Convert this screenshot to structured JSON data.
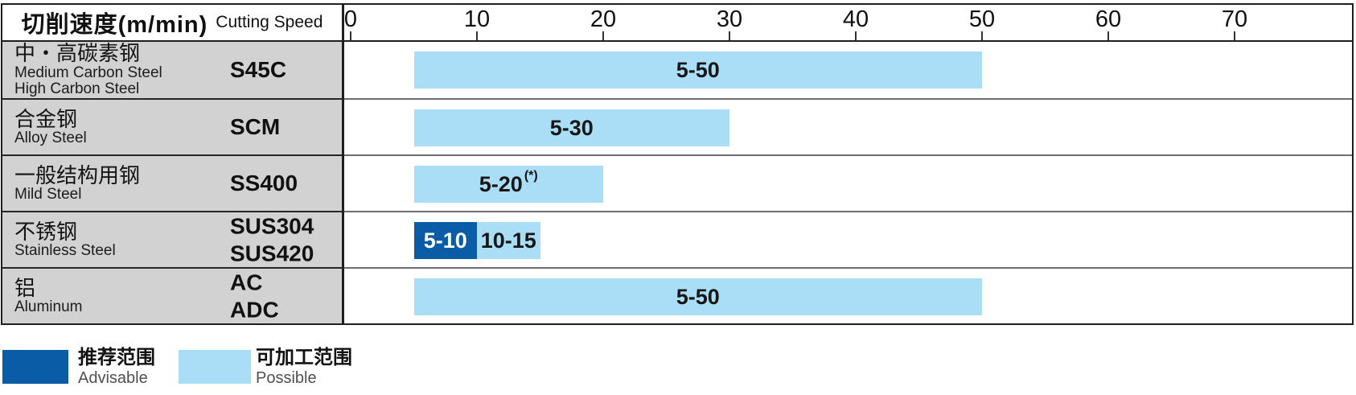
{
  "header": {
    "title_cjk": "切削速度(m/min)",
    "title_en": "Cutting Speed"
  },
  "axis": {
    "ticks": [
      0,
      10,
      20,
      30,
      40,
      50,
      60,
      70
    ],
    "unit": "m/min"
  },
  "rows": [
    {
      "name_cjk": "中・高碳素钢",
      "name_en": [
        "Medium Carbon Steel",
        "High Carbon Steel"
      ],
      "grades": [
        "S45C"
      ],
      "bars": [
        {
          "from": 5,
          "to": 50,
          "label": "5-50",
          "sup": "",
          "type": "possible"
        }
      ]
    },
    {
      "name_cjk": "合金钢",
      "name_en": [
        "Alloy Steel"
      ],
      "grades": [
        "SCM"
      ],
      "bars": [
        {
          "from": 5,
          "to": 30,
          "label": "5-30",
          "sup": "",
          "type": "possible"
        }
      ]
    },
    {
      "name_cjk": "一般结构用钢",
      "name_en": [
        "Mild Steel"
      ],
      "grades": [
        "SS400"
      ],
      "bars": [
        {
          "from": 5,
          "to": 20,
          "label": "5-20",
          "sup": "(*)",
          "type": "possible"
        }
      ]
    },
    {
      "name_cjk": "不锈钢",
      "name_en": [
        "Stainless Steel"
      ],
      "grades": [
        "SUS304",
        "SUS420"
      ],
      "bars": [
        {
          "from": 5,
          "to": 10,
          "label": "5-10",
          "sup": "",
          "type": "advisable"
        },
        {
          "from": 10,
          "to": 15,
          "label": "10-15",
          "sup": "",
          "type": "possible"
        }
      ]
    },
    {
      "name_cjk": "铝",
      "name_en": [
        "Aluminum"
      ],
      "grades": [
        "AC",
        "ADC"
      ],
      "bars": [
        {
          "from": 5,
          "to": 50,
          "label": "5-50",
          "sup": "",
          "type": "possible"
        }
      ]
    }
  ],
  "legend": [
    {
      "type": "advisable",
      "label_cjk": "推荐范围",
      "label_en": "Advisable"
    },
    {
      "type": "possible",
      "label_cjk": "可加工范围",
      "label_en": "Possible"
    }
  ],
  "colors": {
    "advisable": "#0b5ca6",
    "possible": "#aadef7",
    "advisable_text": "#ffffff",
    "possible_text": "#161616",
    "panel_gray": "#d2d2d2"
  },
  "chart_data": {
    "type": "bar",
    "orientation": "horizontal",
    "title": "切削速度(m/min) Cutting Speed",
    "xlabel": "Cutting Speed (m/min)",
    "xlim": [
      0,
      80
    ],
    "xticks": [
      0,
      10,
      20,
      30,
      40,
      50,
      60,
      70
    ],
    "grid": false,
    "legend_position": "bottom-left",
    "categories": [
      "中・高碳素钢 Medium/High Carbon Steel — S45C",
      "合金钢 Alloy Steel — SCM",
      "一般结构用钢 Mild Steel — SS400",
      "不锈钢 Stainless Steel — SUS304/SUS420",
      "铝 Aluminum — AC/ADC"
    ],
    "series": [
      {
        "name": "推荐范围 Advisable",
        "ranges": [
          null,
          null,
          null,
          [
            5,
            10
          ],
          null
        ]
      },
      {
        "name": "可加工范围 Possible",
        "ranges": [
          [
            5,
            50
          ],
          [
            5,
            30
          ],
          [
            5,
            20
          ],
          [
            10,
            15
          ],
          [
            5,
            50
          ]
        ]
      }
    ],
    "annotations": [
      "5-50",
      "5-30",
      "5-20(*)",
      "5-10",
      "10-15",
      "5-50"
    ]
  }
}
